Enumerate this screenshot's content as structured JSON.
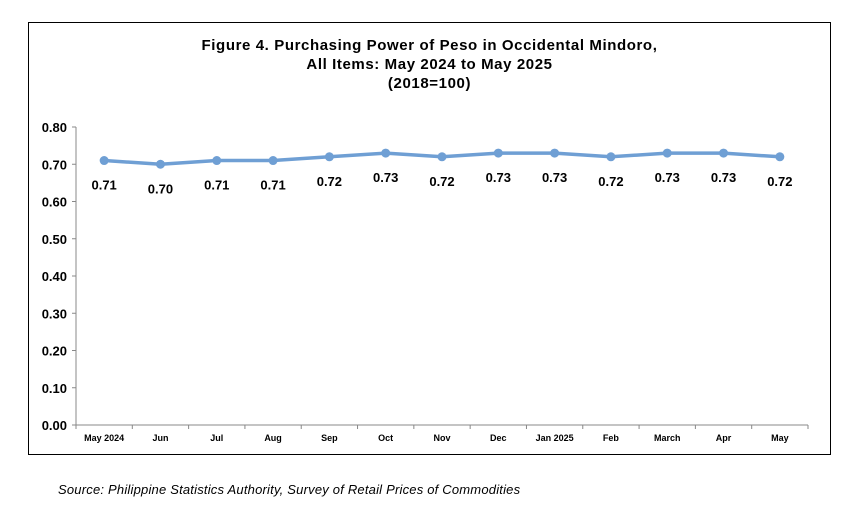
{
  "chart_data": {
    "type": "line",
    "title": [
      "Figure 4. Purchasing Power of Peso in Occidental Mindoro,",
      "All Items: May 2024 to May 2025",
      "(2018=100)"
    ],
    "categories": [
      "May 2024",
      "Jun",
      "Jul",
      "Aug",
      "Sep",
      "Oct",
      "Nov",
      "Dec",
      "Jan 2025",
      "Feb",
      "March",
      "Apr",
      "May"
    ],
    "series": [
      {
        "values": [
          0.71,
          0.7,
          0.71,
          0.71,
          0.72,
          0.73,
          0.72,
          0.73,
          0.73,
          0.72,
          0.73,
          0.73,
          0.72
        ],
        "labels": [
          "0.71",
          "0.70",
          "0.71",
          "0.71",
          "0.72",
          "0.73",
          "0.72",
          "0.73",
          "0.73",
          "0.72",
          "0.73",
          "0.73",
          "0.72"
        ]
      }
    ],
    "yticks": [
      "0.00",
      "0.10",
      "0.20",
      "0.30",
      "0.40",
      "0.50",
      "0.60",
      "0.70",
      "0.80"
    ],
    "ylim": [
      0,
      0.8
    ],
    "xlabel": "",
    "ylabel": "",
    "grid": false,
    "legend": "none",
    "line_color": "#6f9fd4"
  },
  "source": "Source: Philippine Statistics Authority, Survey of Retail Prices of Commodities"
}
